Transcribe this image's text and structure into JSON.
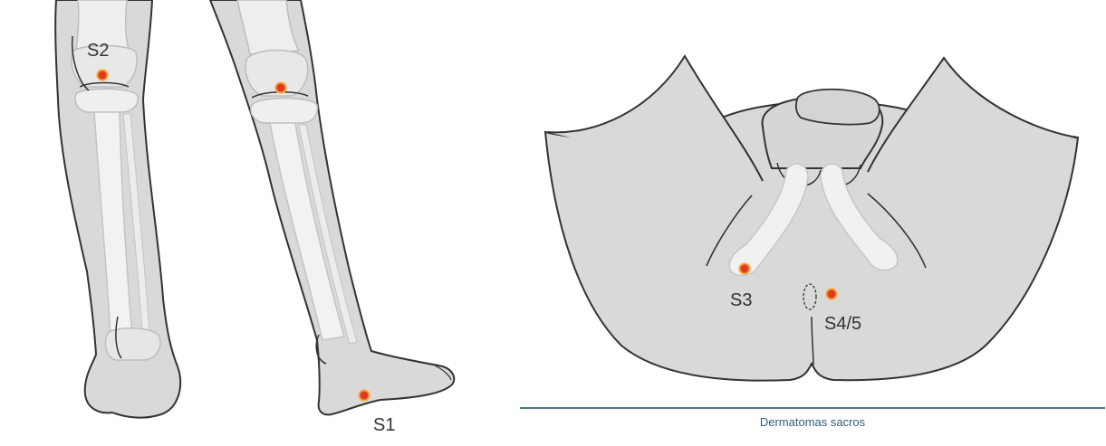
{
  "labels": {
    "s2": "S2",
    "s1": "S1",
    "s3": "S3",
    "s45": "S4/5"
  },
  "caption": "Dermatomas sacros",
  "colors": {
    "skin": "#d9d9d9",
    "outline": "#333333",
    "bone": "#f0f0f0",
    "point_fill": "#e03a1e",
    "point_ring": "#f6b34a",
    "rule": "#4f7385",
    "caption_text": "#2f5d7a"
  },
  "icons": {
    "stimulation_point": "red-dot-marker"
  }
}
